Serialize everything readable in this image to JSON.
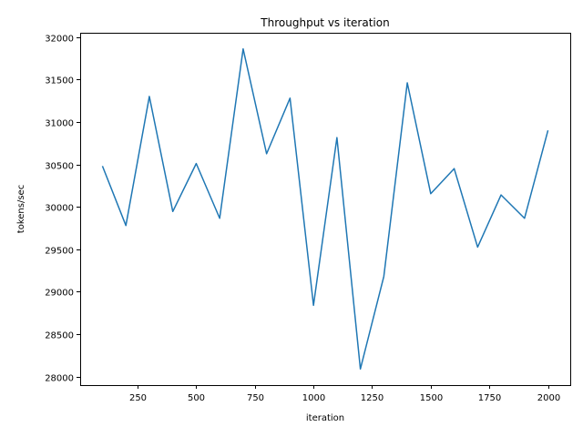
{
  "chart_data": {
    "type": "line",
    "title": "Throughput vs iteration",
    "xlabel": "iteration",
    "ylabel": "tokens/sec",
    "xlim": [
      5,
      2095
    ],
    "ylim": [
      27900,
      32050
    ],
    "xticks": [
      250,
      500,
      750,
      1000,
      1250,
      1500,
      1750,
      2000
    ],
    "xtick_labels": [
      "250",
      "500",
      "750",
      "1000",
      "1250",
      "1500",
      "1750",
      "2000"
    ],
    "yticks": [
      28000,
      28500,
      29000,
      29500,
      30000,
      30500,
      31000,
      31500,
      32000
    ],
    "ytick_labels": [
      "28000",
      "28500",
      "29000",
      "29500",
      "30000",
      "30500",
      "31000",
      "31500",
      "32000"
    ],
    "grid": false,
    "series": [
      {
        "color": "#1f77b4",
        "x": [
          100,
          200,
          300,
          400,
          500,
          600,
          700,
          800,
          900,
          1000,
          1100,
          1200,
          1300,
          1400,
          1500,
          1600,
          1700,
          1800,
          1900,
          2000
        ],
        "y": [
          30480,
          29780,
          31300,
          29945,
          30510,
          29865,
          31860,
          30625,
          31280,
          28840,
          30815,
          28090,
          29180,
          31460,
          30155,
          30450,
          29525,
          30140,
          29865,
          30900
        ]
      }
    ]
  }
}
